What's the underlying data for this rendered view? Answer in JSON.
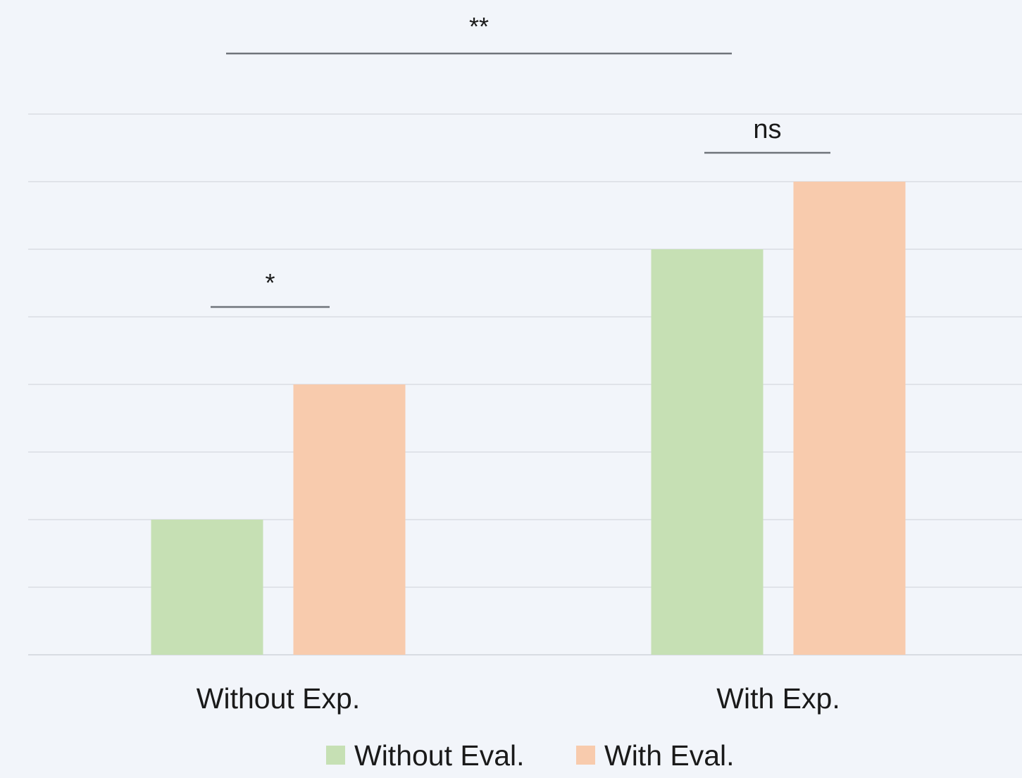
{
  "chart_data": {
    "type": "bar",
    "title": "",
    "xlabel": "",
    "ylabel": "",
    "categories": [
      "Without Exp.",
      "With Exp."
    ],
    "series": [
      {
        "name": "Without Eval.",
        "values": [
          2,
          6
        ],
        "color": "#c6e0b4"
      },
      {
        "name": "With Eval.",
        "values": [
          4,
          7
        ],
        "color": "#f8cbad"
      }
    ],
    "ylim": [
      0,
      8
    ],
    "gridlines": [
      0,
      1,
      2,
      3,
      4,
      5,
      6,
      7,
      8
    ],
    "grid": true,
    "y_axis_labels_shown": false,
    "legend": {
      "position": "bottom"
    },
    "significance": [
      {
        "label": "*",
        "compares": [
          "Without Exp. / Without Eval.",
          "Without Exp. / With Eval."
        ]
      },
      {
        "label": "ns",
        "compares": [
          "With Exp. / Without Eval.",
          "With Exp. / With Eval."
        ]
      },
      {
        "label": "**",
        "compares": [
          "Without Exp.",
          "With Exp."
        ]
      }
    ]
  }
}
